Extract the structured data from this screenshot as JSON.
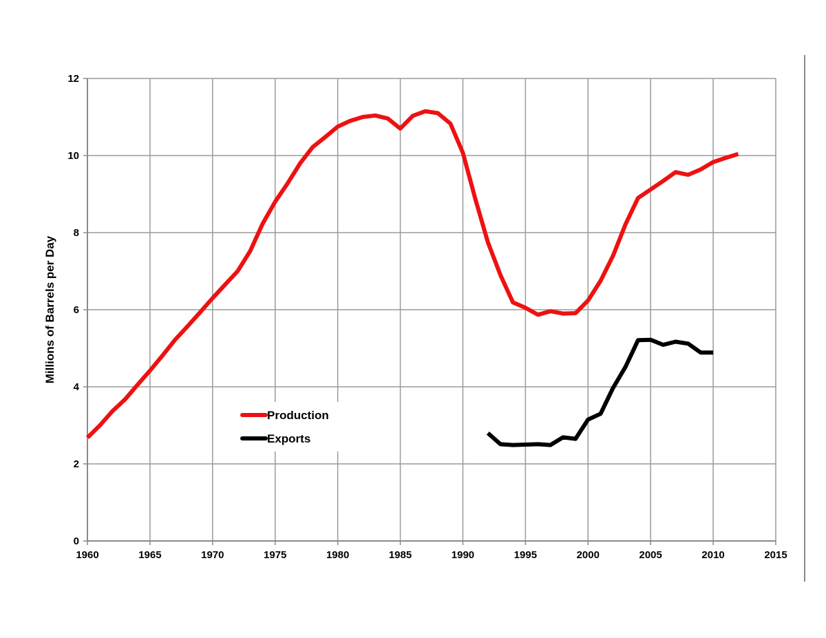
{
  "chart_data": {
    "type": "line",
    "title": "",
    "xlabel": "",
    "ylabel": "Millions of Barrels per Day",
    "xlim": [
      1960,
      2015
    ],
    "ylim": [
      0,
      12
    ],
    "x_ticks": [
      1960,
      1965,
      1970,
      1975,
      1980,
      1985,
      1990,
      1995,
      2000,
      2005,
      2010,
      2015
    ],
    "y_ticks": [
      0,
      2,
      4,
      6,
      8,
      10,
      12
    ],
    "grid": true,
    "legend_placement": "inside-lower-left",
    "series": [
      {
        "name": "Production",
        "color": "#ee1111",
        "x": [
          1960,
          1961,
          1962,
          1963,
          1964,
          1965,
          1966,
          1967,
          1968,
          1969,
          1970,
          1971,
          1972,
          1973,
          1974,
          1975,
          1976,
          1977,
          1978,
          1979,
          1980,
          1981,
          1982,
          1983,
          1984,
          1985,
          1986,
          1987,
          1988,
          1989,
          1990,
          1991,
          1992,
          1993,
          1994,
          1995,
          1996,
          1997,
          1998,
          1999,
          2000,
          2001,
          2002,
          2003,
          2004,
          2005,
          2006,
          2007,
          2008,
          2009,
          2010,
          2011,
          2012
        ],
        "y": [
          2.68,
          3.0,
          3.37,
          3.67,
          4.05,
          4.42,
          4.81,
          5.22,
          5.57,
          5.93,
          6.3,
          6.65,
          7.0,
          7.52,
          8.23,
          8.8,
          9.28,
          9.8,
          10.22,
          10.48,
          10.75,
          10.9,
          11.0,
          11.04,
          10.96,
          10.7,
          11.03,
          11.15,
          11.1,
          10.83,
          10.07,
          8.87,
          7.75,
          6.9,
          6.19,
          6.05,
          5.87,
          5.96,
          5.9,
          5.91,
          6.24,
          6.75,
          7.4,
          8.22,
          8.9,
          9.12,
          9.34,
          9.57,
          9.5,
          9.64,
          9.83,
          9.94,
          10.04
        ]
      },
      {
        "name": "Exports",
        "color": "#000000",
        "x": [
          1992,
          1993,
          1994,
          1995,
          1996,
          1997,
          1998,
          1999,
          2000,
          2001,
          2002,
          2003,
          2004,
          2005,
          2006,
          2007,
          2008,
          2009,
          2010
        ],
        "y": [
          2.8,
          2.51,
          2.49,
          2.5,
          2.51,
          2.49,
          2.69,
          2.65,
          3.15,
          3.3,
          3.97,
          4.52,
          5.21,
          5.22,
          5.09,
          5.17,
          5.12,
          4.89,
          4.89
        ]
      }
    ]
  }
}
